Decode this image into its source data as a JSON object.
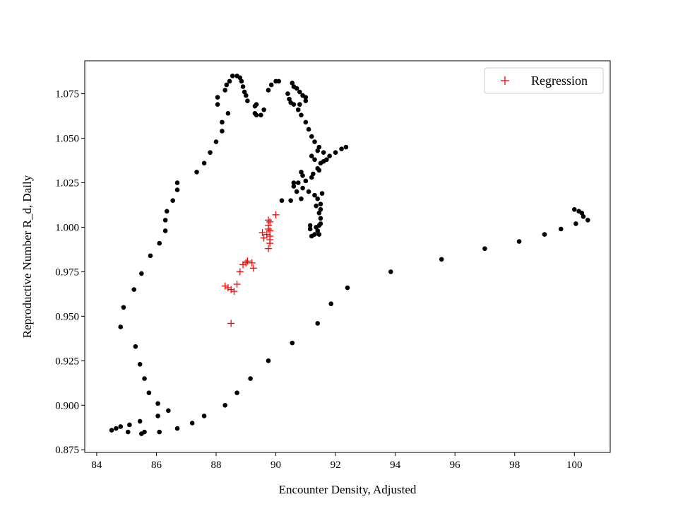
{
  "chart_data": {
    "type": "scatter",
    "title": "",
    "xlabel": "Encounter Density, Adjusted",
    "ylabel": "Reproductive Number R_d, Daily",
    "xlim": [
      83.6,
      101.2
    ],
    "ylim": [
      0.8735,
      1.0935
    ],
    "xticks": [
      84,
      86,
      88,
      90,
      92,
      94,
      96,
      98,
      100
    ],
    "yticks": [
      0.875,
      0.9,
      0.925,
      0.95,
      0.975,
      1.0,
      1.025,
      1.05,
      1.075
    ],
    "grid": false,
    "legend_position": "top-right",
    "colors": {
      "observed": "#000000",
      "regression": "#ff0000"
    },
    "series": [
      {
        "name": "",
        "marker": "circle",
        "color": "#000000",
        "points": [
          [
            84.5,
            0.886
          ],
          [
            84.65,
            0.887
          ],
          [
            84.8,
            0.888
          ],
          [
            85.05,
            0.885
          ],
          [
            85.1,
            0.889
          ],
          [
            85.45,
            0.891
          ],
          [
            85.6,
            0.885
          ],
          [
            86.1,
            0.885
          ],
          [
            86.4,
            0.897
          ],
          [
            86.05,
            0.894
          ],
          [
            86.05,
            0.901
          ],
          [
            85.75,
            0.907
          ],
          [
            85.6,
            0.915
          ],
          [
            85.45,
            0.923
          ],
          [
            85.3,
            0.933
          ],
          [
            84.8,
            0.944
          ],
          [
            84.9,
            0.955
          ],
          [
            85.25,
            0.965
          ],
          [
            85.5,
            0.974
          ],
          [
            85.8,
            0.984
          ],
          [
            86.1,
            0.991
          ],
          [
            86.3,
            0.998
          ],
          [
            86.3,
            1.004
          ],
          [
            86.35,
            1.009
          ],
          [
            86.55,
            1.015
          ],
          [
            86.7,
            1.021
          ],
          [
            86.7,
            1.025
          ],
          [
            87.35,
            1.031
          ],
          [
            87.6,
            1.036
          ],
          [
            87.8,
            1.042
          ],
          [
            88.0,
            1.048
          ],
          [
            88.2,
            1.054
          ],
          [
            88.2,
            1.059
          ],
          [
            88.4,
            1.064
          ],
          [
            88.05,
            1.069
          ],
          [
            88.05,
            1.073
          ],
          [
            88.3,
            1.077
          ],
          [
            88.35,
            1.08
          ],
          [
            88.45,
            1.082
          ],
          [
            88.55,
            1.085
          ],
          [
            88.7,
            1.085
          ],
          [
            88.8,
            1.084
          ],
          [
            88.85,
            1.082
          ],
          [
            88.9,
            1.079
          ],
          [
            88.95,
            1.076
          ],
          [
            89.0,
            1.074
          ],
          [
            89.05,
            1.071
          ],
          [
            89.3,
            1.068
          ],
          [
            89.6,
            1.066
          ],
          [
            89.3,
            1.064
          ],
          [
            89.35,
            1.063
          ],
          [
            89.5,
            1.063
          ],
          [
            89.35,
            1.069
          ],
          [
            89.75,
            1.077
          ],
          [
            89.85,
            1.08
          ],
          [
            90.0,
            1.082
          ],
          [
            90.1,
            1.082
          ],
          [
            90.55,
            1.081
          ],
          [
            90.6,
            1.079
          ],
          [
            90.7,
            1.078
          ],
          [
            90.8,
            1.076
          ],
          [
            90.9,
            1.074
          ],
          [
            91.0,
            1.073
          ],
          [
            90.4,
            1.075
          ],
          [
            90.45,
            1.072
          ],
          [
            90.5,
            1.07
          ],
          [
            90.6,
            1.069
          ],
          [
            90.8,
            1.069
          ],
          [
            91.0,
            1.071
          ],
          [
            90.75,
            1.066
          ],
          [
            90.85,
            1.063
          ],
          [
            91.0,
            1.059
          ],
          [
            91.1,
            1.055
          ],
          [
            91.2,
            1.051
          ],
          [
            91.3,
            1.048
          ],
          [
            91.45,
            1.045
          ],
          [
            91.6,
            1.042
          ],
          [
            91.8,
            1.04
          ],
          [
            92.0,
            1.042
          ],
          [
            92.2,
            1.044
          ],
          [
            92.35,
            1.045
          ],
          [
            91.4,
            1.043
          ],
          [
            91.2,
            1.04
          ],
          [
            91.3,
            1.038
          ],
          [
            91.5,
            1.036
          ],
          [
            91.6,
            1.037
          ],
          [
            91.7,
            1.038
          ],
          [
            91.45,
            1.032
          ],
          [
            91.25,
            1.03
          ],
          [
            91.4,
            1.033
          ],
          [
            91.2,
            1.028
          ],
          [
            91.0,
            1.026
          ],
          [
            90.9,
            1.029
          ],
          [
            90.85,
            1.031
          ],
          [
            90.75,
            1.025
          ],
          [
            90.6,
            1.023
          ],
          [
            90.7,
            1.02
          ],
          [
            90.9,
            1.022
          ],
          [
            91.1,
            1.02
          ],
          [
            91.3,
            1.018
          ],
          [
            91.4,
            1.016
          ],
          [
            91.35,
            1.012
          ],
          [
            91.45,
            1.008
          ],
          [
            91.5,
            1.013
          ],
          [
            91.55,
            1.019
          ],
          [
            91.5,
            1.01
          ],
          [
            91.5,
            1.005
          ],
          [
            91.45,
            1.001
          ],
          [
            91.4,
            0.998
          ],
          [
            91.3,
            0.996
          ],
          [
            91.2,
            0.995
          ],
          [
            91.15,
            0.999
          ],
          [
            91.15,
            1.001
          ],
          [
            91.35,
            1.0
          ],
          [
            91.45,
            0.996
          ],
          [
            91.5,
            1.002
          ],
          [
            90.85,
            1.016
          ],
          [
            90.5,
            1.015
          ],
          [
            90.2,
            1.015
          ],
          [
            90.6,
            1.025
          ],
          [
            91.4,
            0.946
          ],
          [
            91.85,
            0.957
          ],
          [
            92.4,
            0.966
          ],
          [
            93.85,
            0.975
          ],
          [
            95.55,
            0.982
          ],
          [
            97.0,
            0.988
          ],
          [
            98.15,
            0.992
          ],
          [
            99.0,
            0.996
          ],
          [
            99.55,
            0.999
          ],
          [
            100.05,
            1.002
          ],
          [
            100.0,
            1.01
          ],
          [
            100.15,
            1.009
          ],
          [
            100.25,
            1.008
          ],
          [
            100.3,
            1.006
          ],
          [
            100.45,
            1.004
          ],
          [
            90.55,
            0.935
          ],
          [
            89.75,
            0.925
          ],
          [
            89.15,
            0.915
          ],
          [
            88.7,
            0.907
          ],
          [
            88.3,
            0.9
          ],
          [
            87.6,
            0.894
          ],
          [
            87.2,
            0.89
          ],
          [
            86.7,
            0.887
          ],
          [
            85.5,
            0.884
          ]
        ]
      },
      {
        "name": "Regression",
        "marker": "plus",
        "color": "#ff0000",
        "points": [
          [
            88.5,
            0.946
          ],
          [
            88.3,
            0.967
          ],
          [
            88.4,
            0.966
          ],
          [
            88.5,
            0.965
          ],
          [
            88.6,
            0.964
          ],
          [
            88.7,
            0.968
          ],
          [
            88.8,
            0.975
          ],
          [
            88.9,
            0.979
          ],
          [
            89.0,
            0.98
          ],
          [
            89.05,
            0.981
          ],
          [
            89.2,
            0.98
          ],
          [
            89.25,
            0.977
          ],
          [
            89.55,
            0.997
          ],
          [
            89.6,
            0.994
          ],
          [
            89.7,
            0.996
          ],
          [
            89.75,
            0.999
          ],
          [
            89.75,
            1.001
          ],
          [
            89.75,
            1.004
          ],
          [
            89.8,
            1.003
          ],
          [
            89.8,
            0.998
          ],
          [
            89.8,
            0.995
          ],
          [
            89.8,
            0.993
          ],
          [
            89.8,
            0.991
          ],
          [
            89.75,
            0.988
          ],
          [
            90.0,
            1.007
          ]
        ]
      }
    ]
  }
}
